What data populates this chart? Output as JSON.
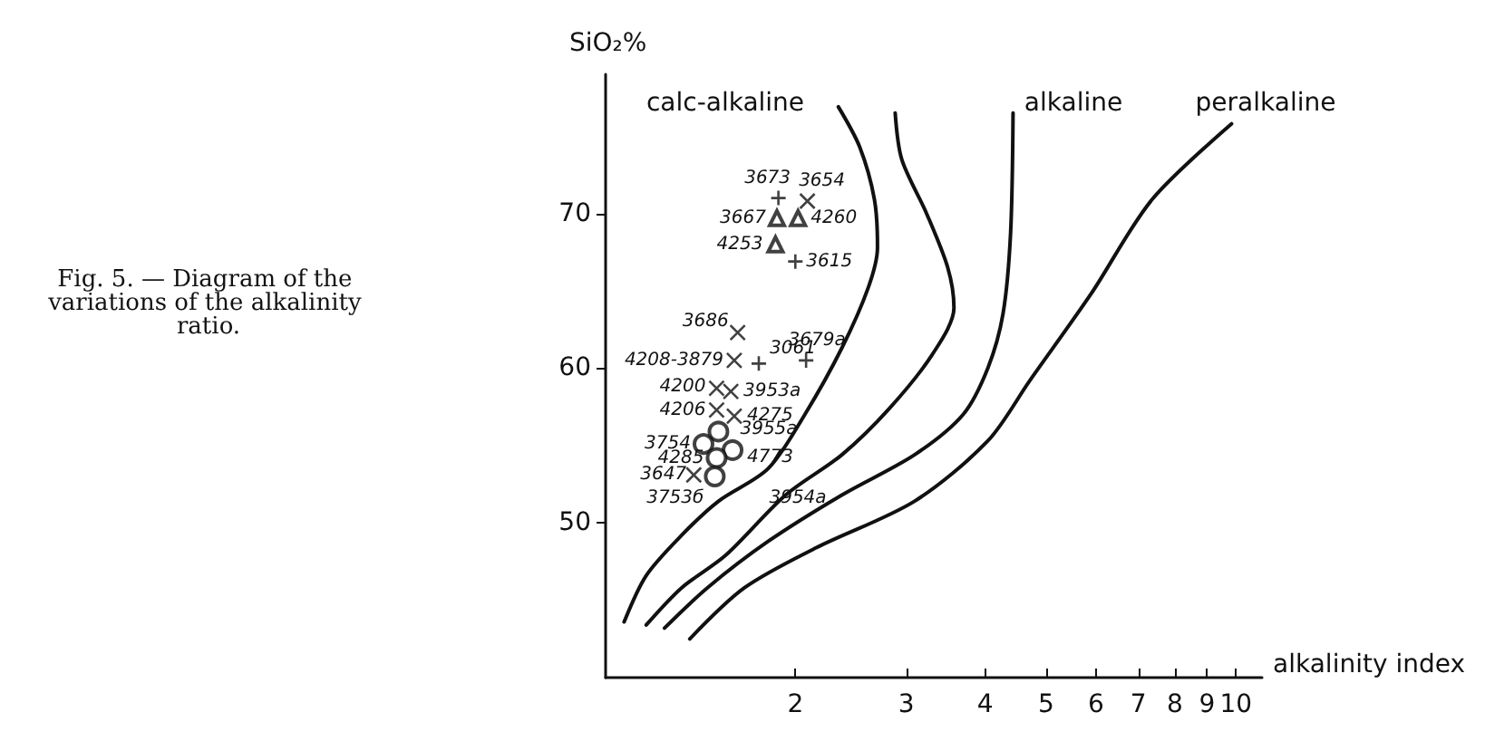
{
  "chart_data": {
    "type": "scatter",
    "xlabel": "alkalinity index",
    "ylabel": "SiO₂%",
    "log": "x",
    "xlim": [
      1,
      11
    ],
    "xticks": [
      2,
      3,
      4,
      5,
      6,
      7,
      8,
      9,
      10
    ],
    "ylim": [
      40,
      79
    ],
    "yticks": [
      50,
      60,
      70
    ],
    "grid": false,
    "annotations": [
      "Fig. 5. — Diagram of the variations of the alkalinity ratio.",
      "calc-alkaline",
      "alkaline",
      "peralkaline",
      "3954a",
      {
        "text": "3673",
        "x": 1.88,
        "y": 71.0
      },
      {
        "text": "3615",
        "x": 2.0,
        "y": 66.9
      },
      {
        "text": "3061",
        "x": 1.75,
        "y": 60.3
      },
      {
        "text": "3679a",
        "x": 2.08,
        "y": 60.5
      },
      {
        "text": "3654",
        "x": 2.09,
        "y": 70.8
      },
      {
        "text": "3686",
        "x": 1.62,
        "y": 62.3
      },
      {
        "text": "4208-3879",
        "x": 1.6,
        "y": 60.5
      },
      {
        "text": "4200",
        "x": 1.5,
        "y": 58.7
      },
      {
        "text": "3953a",
        "x": 1.58,
        "y": 58.5
      },
      {
        "text": "4206",
        "x": 1.5,
        "y": 57.3
      },
      {
        "text": "4275",
        "x": 1.6,
        "y": 56.9
      },
      {
        "text": "3647",
        "x": 1.38,
        "y": 53.1
      },
      {
        "text": "3667",
        "x": 1.87,
        "y": 69.7
      },
      {
        "text": "4260",
        "x": 2.02,
        "y": 69.7
      },
      {
        "text": "4253",
        "x": 1.86,
        "y": 68.0
      },
      {
        "text": "3955a",
        "x": 1.51,
        "y": 55.9
      },
      {
        "text": "3754",
        "x": 1.43,
        "y": 55.1
      },
      {
        "text": "4773",
        "x": 1.59,
        "y": 54.7
      },
      {
        "text": "4285",
        "x": 1.5,
        "y": 54.2
      },
      {
        "text": "3753б",
        "x": 1.49,
        "y": 53.0
      }
    ],
    "series": [
      {
        "marker": "cross",
        "color": "#111111",
        "x": [
          1.88,
          2.0,
          1.75,
          2.08
        ],
        "values": [
          71.0,
          66.9,
          60.3,
          60.5
        ]
      },
      {
        "marker": "x",
        "color": "#111111",
        "x": [
          2.09,
          1.62,
          1.6,
          1.5,
          1.58,
          1.5,
          1.6,
          1.38
        ],
        "values": [
          70.8,
          62.3,
          60.5,
          58.7,
          58.5,
          57.3,
          56.9,
          53.1
        ]
      },
      {
        "marker": "triangle",
        "color": "#111111",
        "x": [
          1.87,
          2.02,
          1.86
        ],
        "values": [
          69.7,
          69.7,
          68.0
        ]
      },
      {
        "marker": "circle",
        "color": "#111111",
        "x": [
          1.51,
          1.43,
          1.59,
          1.5,
          1.49
        ],
        "values": [
          55.9,
          55.1,
          54.7,
          54.2,
          53.0
        ]
      },
      {
        "type": "line",
        "marker": "none",
        "line_style": "solid",
        "color": "#111111",
        "x": [
          1.07,
          1.16,
          1.32,
          1.51,
          1.81,
          2.07,
          2.37,
          2.61,
          2.7,
          2.67,
          2.53,
          2.34
        ],
        "values": [
          43.6,
          46.6,
          49.2,
          51.4,
          53.5,
          57.0,
          61.3,
          65.2,
          67.8,
          70.9,
          74.3,
          76.9
        ]
      },
      {
        "type": "line",
        "marker": "none",
        "line_style": "solid",
        "color": "#111111",
        "x": [
          1.16,
          1.32,
          1.55,
          1.93,
          2.37,
          2.82,
          3.3,
          3.57,
          3.49,
          3.23,
          2.95,
          2.88
        ],
        "values": [
          43.4,
          45.8,
          47.9,
          51.8,
          54.4,
          57.4,
          60.9,
          63.9,
          66.5,
          70.0,
          73.5,
          76.5
        ]
      },
      {
        "type": "line",
        "marker": "none",
        "line_style": "solid",
        "color": "#111111",
        "x": [
          1.24,
          1.45,
          1.81,
          2.37,
          3.09,
          3.69,
          4.04,
          4.27,
          4.39,
          4.43
        ],
        "values": [
          43.2,
          45.8,
          48.8,
          51.8,
          54.4,
          57.0,
          60.0,
          63.5,
          68.7,
          76.5
        ]
      },
      {
        "type": "line",
        "marker": "none",
        "line_style": "solid",
        "color": "#111111",
        "x": [
          1.36,
          1.66,
          2.16,
          3.09,
          4.04,
          4.71,
          5.89,
          7.36,
          9.84
        ],
        "values": [
          42.5,
          45.8,
          48.4,
          51.4,
          55.3,
          59.2,
          64.8,
          70.9,
          75.8
        ]
      }
    ]
  }
}
